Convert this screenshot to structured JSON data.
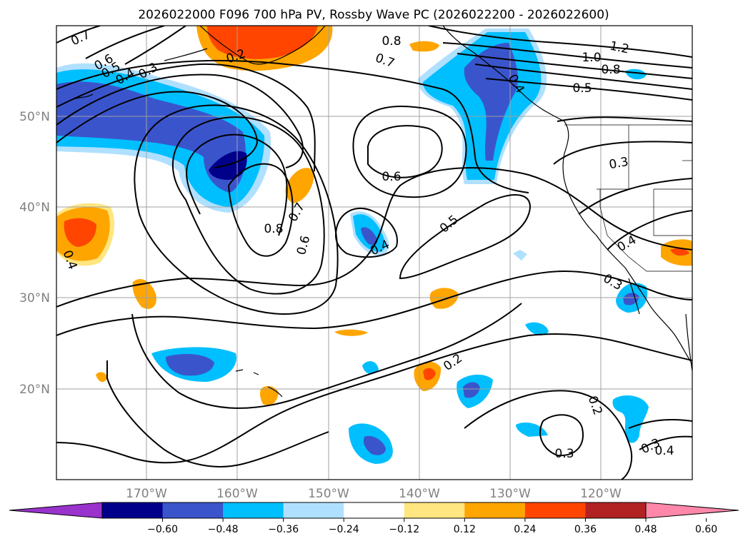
{
  "title": "2026022000 F096 700 hPa PV, Rossby Wave PC (2026022200 - 2026022600)",
  "lat_labels": [
    "50°N",
    "40°N",
    "30°N",
    "20°N"
  ],
  "lon_labels": [
    "170°W",
    "160°W",
    "150°W",
    "140°W",
    "130°W",
    "120°W"
  ],
  "colorbar": {
    "tick_labels": [
      "−0.60",
      "−0.48",
      "−0.36",
      "−0.24",
      "−0.12",
      "0.12",
      "0.24",
      "0.36",
      "0.48",
      "0.60"
    ],
    "colors": [
      "#9933cc",
      "#00008b",
      "#3a55cc",
      "#00bfff",
      "#b0e0ff",
      "#ffffff",
      "#ffe680",
      "#ffa500",
      "#ff4500",
      "#b22222",
      "#ff88aa"
    ]
  },
  "contour_labels": [
    "0.7",
    "0.6",
    "0.5",
    "0.4",
    "0.3",
    "0.2",
    "0.8",
    "0.7",
    "1.2",
    "1.0",
    "0.8",
    "0.5",
    "0.6",
    "0.3",
    "0.7",
    "0.8",
    "0.6",
    "0.5",
    "0.4",
    "0.4",
    "0.3",
    "0.4",
    "0.2",
    "0.2",
    "0.3",
    "0.3",
    "0.4",
    "0.4"
  ]
}
